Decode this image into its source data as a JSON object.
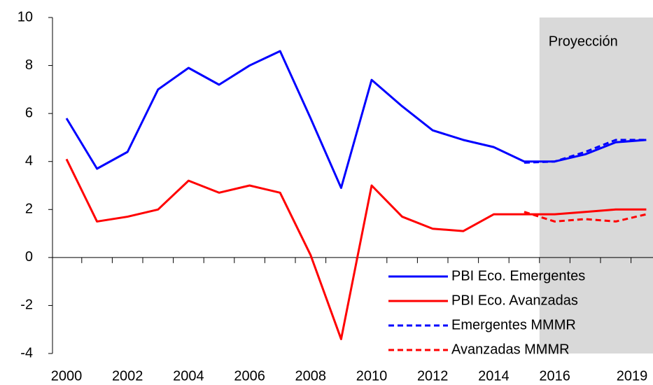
{
  "chart_data": {
    "type": "line",
    "annotation": "Proyección",
    "categories": [
      "2000",
      null,
      "2002",
      null,
      "2004",
      null,
      "2006",
      null,
      "2008",
      null,
      "2010",
      null,
      "2012",
      null,
      "2014",
      null,
      "2016",
      null,
      null,
      "2019"
    ],
    "series": [
      {
        "name": "PBI Eco. Emergentes",
        "color": "#0000ff",
        "dash": false,
        "values": [
          5.8,
          3.7,
          4.4,
          7.0,
          7.9,
          7.2,
          8.0,
          8.6,
          5.8,
          2.9,
          7.4,
          6.3,
          5.3,
          4.9,
          4.6,
          4.0,
          4.0,
          4.3,
          4.8,
          4.9
        ]
      },
      {
        "name": "PBI Eco. Avanzadas",
        "color": "#ff0000",
        "dash": false,
        "values": [
          4.1,
          1.5,
          1.7,
          2.0,
          3.2,
          2.7,
          3.0,
          2.7,
          0.1,
          -3.4,
          3.0,
          1.7,
          1.2,
          1.1,
          1.8,
          1.8,
          1.8,
          1.9,
          2.0,
          2.0
        ]
      },
      {
        "name": "Emergentes MMMR",
        "color": "#0000ff",
        "dash": true,
        "values": [
          null,
          null,
          null,
          null,
          null,
          null,
          null,
          null,
          null,
          null,
          null,
          null,
          null,
          null,
          null,
          3.95,
          4.0,
          4.4,
          4.9,
          4.9
        ]
      },
      {
        "name": "Avanzadas MMMR",
        "color": "#ff0000",
        "dash": true,
        "values": [
          null,
          null,
          null,
          null,
          null,
          null,
          null,
          null,
          null,
          null,
          null,
          null,
          null,
          null,
          null,
          1.9,
          1.5,
          1.6,
          1.5,
          1.8
        ]
      }
    ],
    "ylim": [
      -4,
      10
    ],
    "yticks": [
      -4,
      -2,
      0,
      2,
      4,
      6,
      8,
      10
    ],
    "legend": "lower right"
  }
}
